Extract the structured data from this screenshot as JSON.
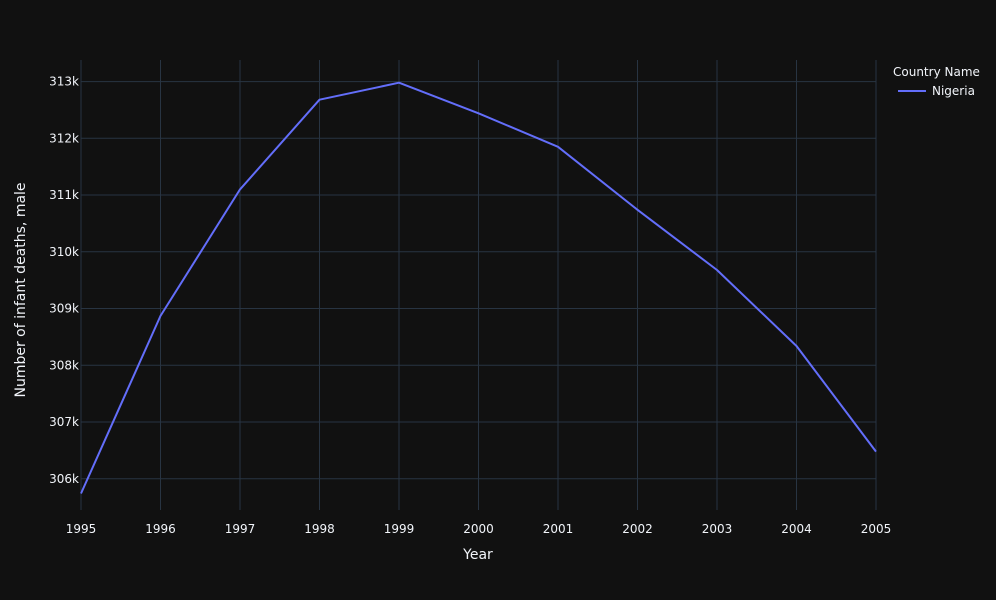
{
  "chart_data": {
    "type": "line",
    "x": [
      1995,
      1996,
      1997,
      1998,
      1999,
      2000,
      2001,
      2002,
      2003,
      2004,
      2005
    ],
    "series": [
      {
        "name": "Nigeria",
        "values": [
          305740,
          308870,
          311100,
          312680,
          312980,
          312440,
          311850,
          310740,
          309680,
          308340,
          306480
        ]
      }
    ],
    "xlabel": "Year",
    "ylabel": "Number of infant deaths, male",
    "x_ticks": [
      "1995",
      "1996",
      "1997",
      "1998",
      "1999",
      "2000",
      "2001",
      "2002",
      "2003",
      "2004",
      "2005"
    ],
    "y_ticks": [
      "306k",
      "307k",
      "308k",
      "309k",
      "310k",
      "311k",
      "312k",
      "313k"
    ],
    "y_tick_values": [
      306000,
      307000,
      308000,
      309000,
      310000,
      311000,
      312000,
      313000
    ],
    "xlim": [
      1995,
      2005
    ],
    "ylim": [
      305450,
      313380
    ],
    "legend_title": "Country Name",
    "legend_position": "top-right",
    "grid": true,
    "colors": {
      "background": "#111111",
      "grid": "#283442",
      "text": "#f2f5fa",
      "series": [
        "#636efa"
      ]
    }
  }
}
